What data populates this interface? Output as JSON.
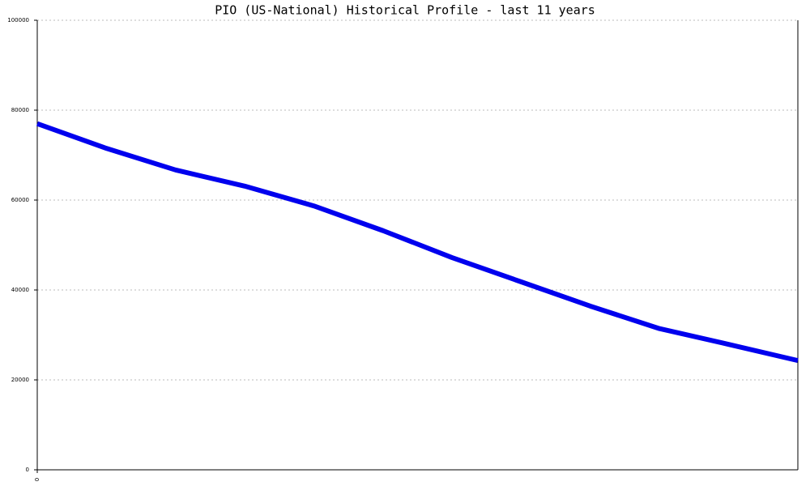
{
  "chart_data": {
    "type": "line",
    "title": "PIO (US-National) Historical Profile - last 11 years",
    "categories": [
      "0",
      null,
      null,
      null,
      null,
      null,
      null,
      null,
      null,
      null,
      null,
      null
    ],
    "series": [
      {
        "color": "#0000ee",
        "values": [
          77000,
          71500,
          66700,
          63100,
          58700,
          53200,
          47200,
          41800,
          36400,
          31400,
          27900,
          24300
        ]
      }
    ],
    "ylim": [
      0,
      100000
    ],
    "yticks": [
      0,
      20000,
      40000,
      60000,
      80000,
      100000
    ],
    "grid": true
  }
}
